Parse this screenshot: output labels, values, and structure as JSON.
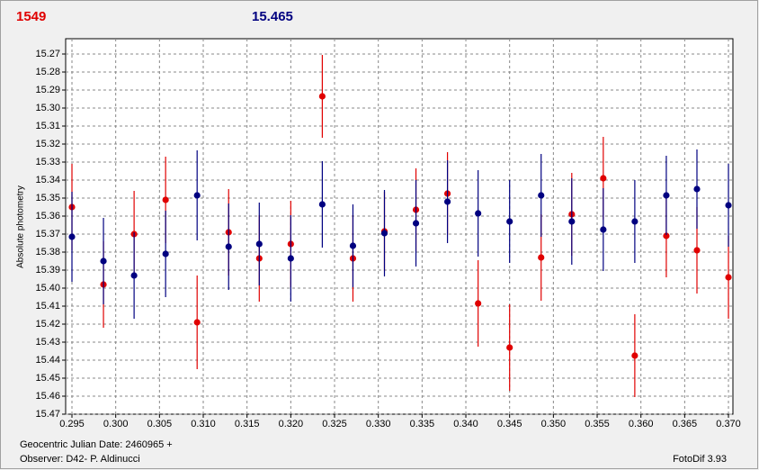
{
  "chart_data": {
    "type": "scatter",
    "title": "1549",
    "subtitle": "15.465",
    "ylabel": "Absolute photometry",
    "xlabel": "Geocentric Julian Date: 2460965 +",
    "observer": "Observer: D42- P. Aldinucci",
    "software": "FotoDif 3.93",
    "x": [
      0.295,
      0.2986,
      0.3021,
      0.3057,
      0.3093,
      0.3129,
      0.3164,
      0.32,
      0.3236,
      0.3271,
      0.3307,
      0.3343,
      0.3379,
      0.3414,
      0.345,
      0.3486,
      0.3521,
      0.3557,
      0.3593,
      0.3629,
      0.3664,
      0.37
    ],
    "series": [
      {
        "name": "1549",
        "color": "#e00000",
        "values": [
          15.355,
          15.398,
          15.37,
          15.351,
          15.419,
          15.369,
          15.3835,
          15.3755,
          15.2935,
          15.3835,
          15.3685,
          15.3565,
          15.3475,
          15.4085,
          15.433,
          15.383,
          15.359,
          15.339,
          15.4375,
          15.371,
          15.379,
          15.394
        ],
        "errors": [
          0.024,
          0.024,
          0.024,
          0.024,
          0.026,
          0.024,
          0.024,
          0.024,
          0.023,
          0.024,
          0.022,
          0.023,
          0.023,
          0.024,
          0.024,
          0.024,
          0.023,
          0.023,
          0.023,
          0.023,
          0.024,
          0.023
        ]
      },
      {
        "name": "15.465",
        "color": "#000080",
        "values": [
          15.3715,
          15.385,
          15.393,
          15.381,
          15.3485,
          15.377,
          15.3755,
          15.3835,
          15.3535,
          15.3765,
          15.3695,
          15.364,
          15.352,
          15.3585,
          15.363,
          15.3485,
          15.363,
          15.3675,
          15.363,
          15.3485,
          15.345,
          15.354
        ],
        "errors": [
          0.025,
          0.024,
          0.024,
          0.024,
          0.025,
          0.024,
          0.023,
          0.024,
          0.024,
          0.023,
          0.024,
          0.024,
          0.023,
          0.024,
          0.023,
          0.023,
          0.024,
          0.023,
          0.023,
          0.022,
          0.022,
          0.023
        ]
      }
    ],
    "xlim": [
      0.29428,
      0.37051
    ],
    "ylim": [
      15.47,
      15.2615
    ],
    "xticks": [
      0.295,
      {
        "value": 0.3,
        "label": "0.300"
      },
      0.305,
      {
        "value": 0.31,
        "label": "0.310"
      },
      0.315,
      {
        "value": 0.32,
        "label": "0.320"
      },
      0.325,
      {
        "value": 0.33,
        "label": "0.330"
      },
      0.335,
      {
        "value": 0.34,
        "label": "0.340"
      },
      0.345,
      {
        "value": 0.35,
        "label": "0.350"
      },
      0.355,
      {
        "value": 0.36,
        "label": "0.360"
      },
      0.365,
      {
        "value": 0.37,
        "label": "0.370"
      }
    ],
    "yticks": [
      15.27,
      15.28,
      15.29,
      {
        "value": 15.3,
        "label": "15.30"
      },
      15.31,
      15.32,
      15.33,
      15.34,
      15.35,
      15.36,
      15.37,
      15.38,
      15.39,
      {
        "value": 15.4,
        "label": "15.40"
      },
      15.41,
      15.42,
      15.43,
      15.44,
      15.45,
      15.46,
      15.47
    ],
    "grid": true
  }
}
